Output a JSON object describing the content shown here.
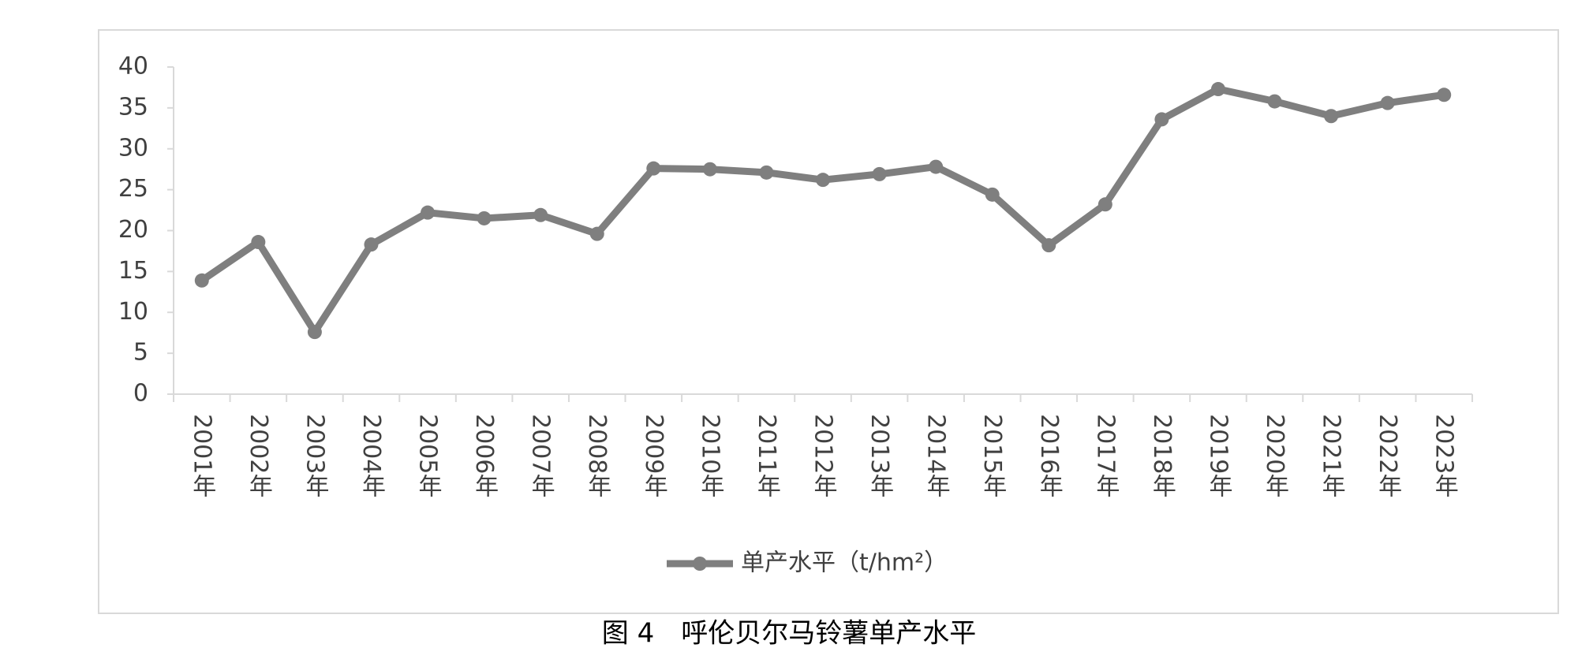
{
  "chart_data": {
    "type": "line",
    "categories": [
      "2001年",
      "2002年",
      "2003年",
      "2004年",
      "2005年",
      "2006年",
      "2007年",
      "2008年",
      "2009年",
      "2010年",
      "2011年",
      "2012年",
      "2013年",
      "2014年",
      "2015年",
      "2016年",
      "2017年",
      "2018年",
      "2019年",
      "2020年",
      "2021年",
      "2022年",
      "2023年"
    ],
    "series": [
      {
        "name": "单产水平（t/hm²）",
        "color": "#7f7f7f",
        "values": [
          13.9,
          18.6,
          7.6,
          18.3,
          22.2,
          21.5,
          21.9,
          19.6,
          27.6,
          27.5,
          27.1,
          26.2,
          26.9,
          27.8,
          24.4,
          18.2,
          23.2,
          33.6,
          37.3,
          35.8,
          34.0,
          35.6,
          36.6
        ]
      }
    ],
    "ylim": [
      0,
      40
    ],
    "yticks": [
      0,
      5,
      10,
      15,
      20,
      25,
      30,
      35,
      40
    ],
    "legend": "bottom",
    "caption": "图 4　呼伦贝尔马铃薯单产水平"
  }
}
